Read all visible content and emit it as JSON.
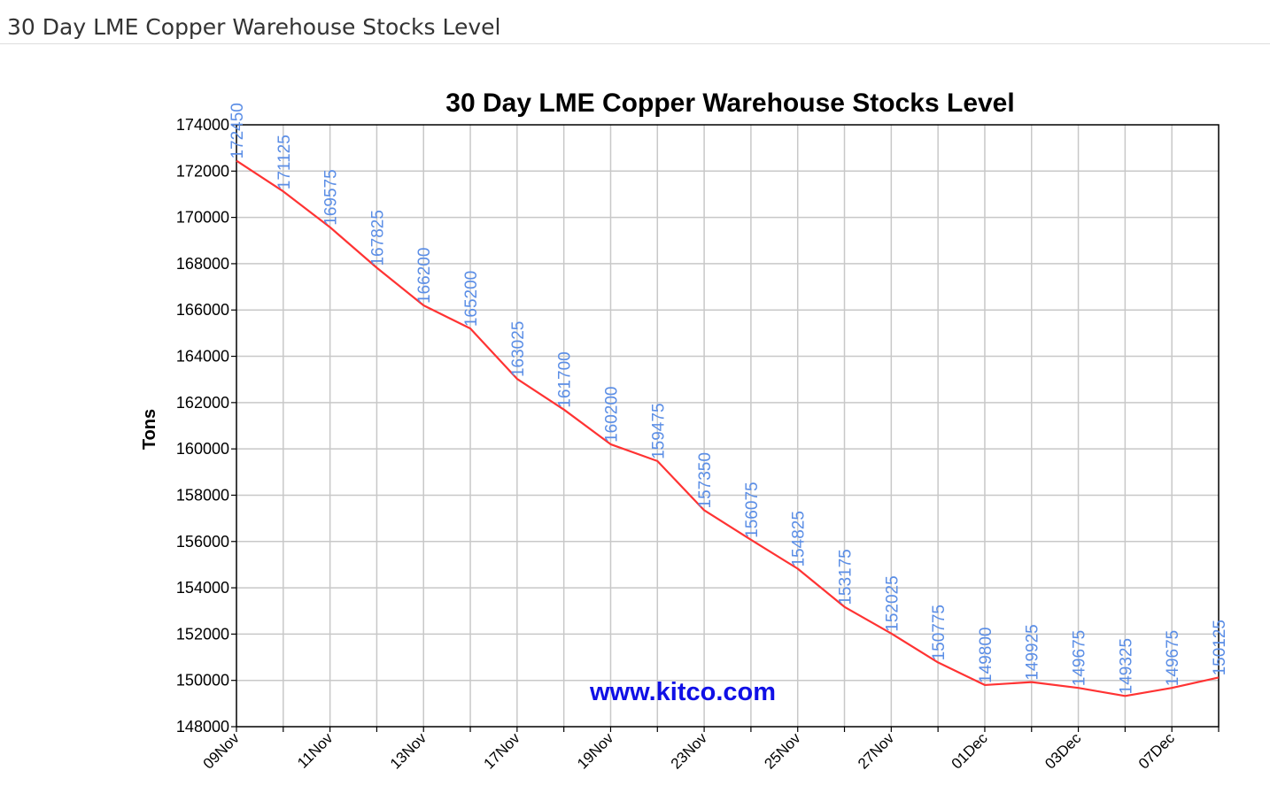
{
  "page": {
    "header_title": "30 Day LME Copper Warehouse Stocks Level"
  },
  "chart_data": {
    "type": "line",
    "title": "30 Day LME Copper Warehouse Stocks Level",
    "xlabel": "",
    "ylabel": "Tons",
    "ylim": [
      148000,
      174000
    ],
    "yticks": [
      148000,
      150000,
      152000,
      154000,
      156000,
      158000,
      160000,
      162000,
      164000,
      166000,
      168000,
      170000,
      172000,
      174000
    ],
    "x_tick_labels": [
      "09Nov",
      "11Nov",
      "13Nov",
      "17Nov",
      "19Nov",
      "23Nov",
      "25Nov",
      "27Nov",
      "01Dec",
      "03Dec",
      "07Dec"
    ],
    "values": [
      172450,
      171125,
      169575,
      167825,
      166200,
      165200,
      163025,
      161700,
      160200,
      159475,
      157350,
      156075,
      154825,
      153175,
      152025,
      150775,
      149800,
      149925,
      149675,
      149325,
      149675,
      150125
    ],
    "data_labels": [
      "172450",
      "171125",
      "169575",
      "167825",
      "166200",
      "165200",
      "163025",
      "161700",
      "160200",
      "159475",
      "157350",
      "156075",
      "154825",
      "153175",
      "152025",
      "150775",
      "149800",
      "149925",
      "149675",
      "149325",
      "149675",
      "150125"
    ],
    "grid": true,
    "line_color": "#ff3333",
    "label_color": "#5b8ee6",
    "grid_color": "#c8c8c8",
    "watermark": "www.kitco.com",
    "watermark_color": "#1010e6"
  }
}
